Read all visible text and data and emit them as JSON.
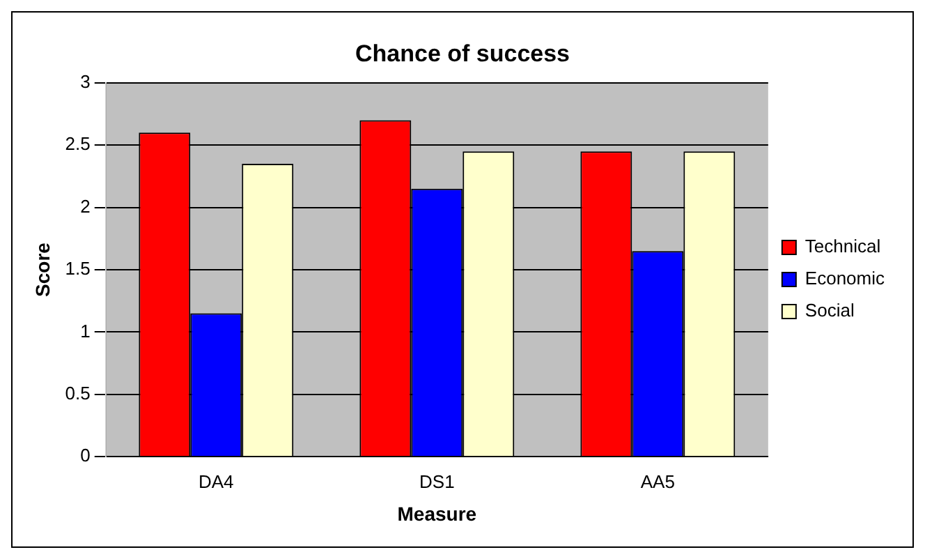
{
  "chart_data": {
    "type": "bar",
    "title": "Chance of success",
    "xlabel": "Measure",
    "ylabel": "Score",
    "categories": [
      "DA4",
      "DS1",
      "AA5"
    ],
    "series": [
      {
        "name": "Technical",
        "color": "#ff0000",
        "values": [
          2.6,
          2.7,
          2.45
        ]
      },
      {
        "name": "Economic",
        "color": "#0000ff",
        "values": [
          1.15,
          2.15,
          1.65
        ]
      },
      {
        "name": "Social",
        "color": "#ffffcc",
        "values": [
          2.35,
          2.45,
          2.45
        ]
      }
    ],
    "ylim": [
      0,
      3
    ],
    "yticks": [
      0,
      0.5,
      1,
      1.5,
      2,
      2.5,
      3
    ],
    "grid": "y",
    "legend": "right"
  }
}
